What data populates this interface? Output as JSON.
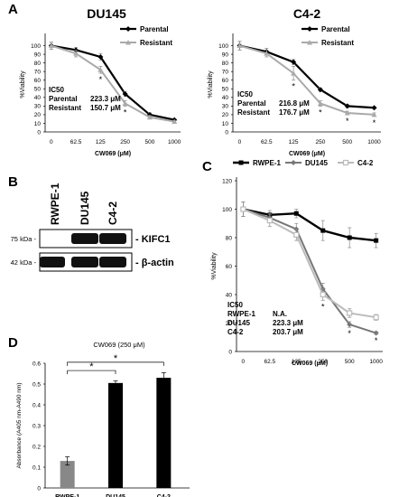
{
  "panel_letters": {
    "a": "A",
    "b": "B",
    "c": "C",
    "d": "D"
  },
  "colors": {
    "parental": "#000000",
    "resistant": "#aaaaaa",
    "rwpe": "#000000",
    "du145": "#777777",
    "c42": "#bbbbbb",
    "bar_gray": "#888888",
    "bar_black": "#000000"
  },
  "chart_data": [
    {
      "id": "A-left",
      "type": "line",
      "title": "DU145",
      "xlabel": "CW069 (μM)",
      "ylabel": "%Viability",
      "categories": [
        "0",
        "62.5",
        "125",
        "250",
        "500",
        "1000"
      ],
      "ylim": [
        0,
        110
      ],
      "yticks": [
        "0",
        "10",
        "20",
        "30",
        "40",
        "50",
        "60",
        "70",
        "80",
        "90",
        "100"
      ],
      "series": [
        {
          "name": "Parental",
          "values": [
            100,
            95,
            87,
            44,
            20,
            14
          ],
          "errors": [
            4,
            3,
            4,
            3,
            2,
            1
          ]
        },
        {
          "name": "Resistant",
          "values": [
            100,
            91,
            72,
            33,
            17,
            12
          ],
          "errors": [
            4,
            4,
            4,
            3,
            2,
            1
          ]
        }
      ],
      "stars": [
        "",
        "",
        "*",
        "*",
        "",
        ""
      ],
      "ic50": {
        "header": "IC50",
        "rows": [
          [
            "Parental",
            "223.3 μM"
          ],
          [
            "Resistant",
            "150.7 μM"
          ]
        ]
      },
      "legend": "top-right"
    },
    {
      "id": "A-right",
      "type": "line",
      "title": "C4-2",
      "xlabel": "CW069 (μM)",
      "ylabel": "%Viability",
      "categories": [
        "0",
        "62.5",
        "125",
        "250",
        "500",
        "1000"
      ],
      "ylim": [
        0,
        110
      ],
      "yticks": [
        "0",
        "10",
        "20",
        "30",
        "40",
        "50",
        "60",
        "70",
        "80",
        "90",
        "100"
      ],
      "series": [
        {
          "name": "Parental",
          "values": [
            100,
            93,
            81,
            49,
            30,
            28
          ],
          "errors": [
            5,
            4,
            3,
            2,
            2,
            1
          ]
        },
        {
          "name": "Resistant",
          "values": [
            100,
            91,
            68,
            33,
            22,
            20
          ],
          "errors": [
            5,
            4,
            8,
            3,
            2,
            2
          ]
        }
      ],
      "stars": [
        "",
        "",
        "*",
        "*",
        "*",
        "*"
      ],
      "ic50": {
        "header": "IC50",
        "rows": [
          [
            "Parental",
            "216.8 μM"
          ],
          [
            "Resistant",
            "176.7 μM"
          ]
        ]
      },
      "legend": "top-right"
    },
    {
      "id": "C",
      "type": "line",
      "title": "",
      "xlabel": "CW069 (μM)",
      "ylabel": "%Viability",
      "categories": [
        "0",
        "62.5",
        "125",
        "250",
        "500",
        "1000"
      ],
      "ylim": [
        0,
        120
      ],
      "yticks": [
        "0",
        "20",
        "40",
        "60",
        "80",
        "100",
        "120"
      ],
      "series": [
        {
          "name": "RWPE-1",
          "values": [
            100,
            96,
            97,
            85,
            80,
            78
          ],
          "errors": [
            5,
            3,
            3,
            7,
            7,
            5
          ]
        },
        {
          "name": "DU145",
          "values": [
            100,
            94,
            86,
            44,
            19,
            13
          ],
          "errors": [
            5,
            3,
            4,
            4,
            2,
            1
          ]
        },
        {
          "name": "C4-2",
          "values": [
            100,
            92,
            82,
            40,
            27,
            24
          ],
          "errors": [
            5,
            4,
            4,
            4,
            3,
            2
          ]
        }
      ],
      "stars": [
        "",
        "",
        "",
        "*",
        "*",
        "*"
      ],
      "ic50": {
        "header": "IC50",
        "rows": [
          [
            "RWPE-1",
            "N.A."
          ],
          [
            "DU145",
            "223.3 μM"
          ],
          [
            "C4-2",
            "203.7 μM"
          ]
        ]
      },
      "legend": "top"
    },
    {
      "id": "D",
      "type": "bar",
      "title": "CW069 (250 μM)",
      "xlabel": "",
      "ylabel": "Absorbance (A405 nm-A490 nm)",
      "categories": [
        "RWPE-1",
        "DU145",
        "C4-2"
      ],
      "values": [
        0.13,
        0.505,
        0.53
      ],
      "errors": [
        0.02,
        0.01,
        0.025
      ],
      "ylim": [
        0,
        0.6
      ],
      "yticks": [
        "0",
        "0.1",
        "0.2",
        "0.3",
        "0.4",
        "0.5",
        "0.6"
      ],
      "brackets": [
        "*",
        "*"
      ]
    }
  ],
  "blot": {
    "lanes": [
      "RWPE-1",
      "DU145",
      "C4-2"
    ],
    "rows": [
      {
        "marker": "75 kDa -",
        "label": "- KIFC1",
        "intensity": [
          0.0,
          1.0,
          1.0
        ]
      },
      {
        "marker": "42 kDa -",
        "label": "- β-actin",
        "intensity": [
          1.0,
          1.0,
          1.0
        ]
      }
    ]
  }
}
